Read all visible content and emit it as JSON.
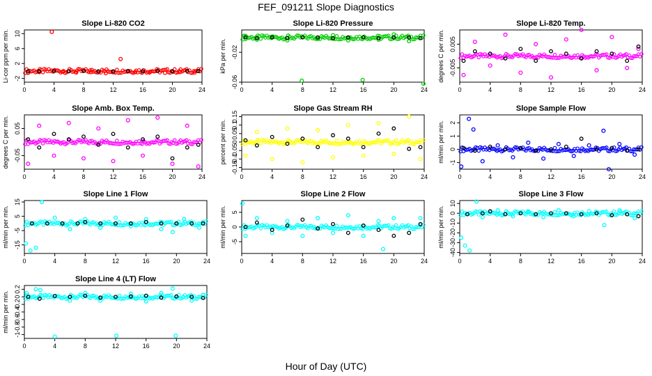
{
  "title": "FEF_091211  Slope Diagnostics",
  "xlabel": "Hour of Day (UTC)",
  "colors": {
    "black_points": "#000000",
    "red": "#ff0000",
    "green": "#00cc00",
    "magenta": "#ff00ff",
    "yellow": "#ffff00",
    "blue": "#0000ff",
    "cyan": "#00ffff"
  },
  "chart_data": [
    {
      "type": "scatter",
      "title": "Slope Li-820 CO2",
      "ylabel": "Li-cor ppm per min.",
      "xlabel": "",
      "xlim": [
        0,
        24
      ],
      "xticks": [
        0,
        4,
        8,
        12,
        16,
        20,
        24
      ],
      "ylim": [
        -3,
        11
      ],
      "yticks": [
        -2,
        2,
        6,
        10
      ],
      "color_key": "red",
      "series": [
        {
          "values_x": [
            0.5,
            2,
            3.7,
            5.2,
            7,
            9,
            11,
            13,
            15,
            17,
            19,
            21,
            23
          ],
          "values_y": [
            -0.5,
            -0.3,
            10.5,
            -0.2,
            -0.4,
            -0.3,
            -0.6,
            3.2,
            -0.3,
            -0.2,
            -0.5,
            -0.3,
            -0.4
          ]
        }
      ],
      "points_black": {
        "x": [
          0.5,
          2,
          4,
          6,
          8,
          10,
          12,
          14,
          16,
          18,
          20,
          22,
          23.5
        ],
        "y": [
          -0.1,
          -0.1,
          0,
          -0.1,
          0,
          -0.1,
          -0.1,
          0,
          -0.1,
          0,
          -0.1,
          0,
          0
        ]
      }
    },
    {
      "type": "scatter",
      "title": "Slope Li-820 Pressure",
      "ylabel": "kPa per min.",
      "xlabel": "",
      "xlim": [
        0,
        24
      ],
      "xticks": [
        0,
        4,
        8,
        12,
        16,
        20,
        24
      ],
      "ylim": [
        -0.06,
        0.01
      ],
      "yticks": [
        -0.06,
        -0.02
      ],
      "color_key": "green",
      "series": [
        {
          "values_x": [
            0.5,
            2,
            4,
            6,
            7.9,
            10,
            12,
            14,
            15.9,
            18,
            20,
            22,
            23.9
          ],
          "values_y": [
            0.002,
            -0.003,
            0.001,
            -0.004,
            -0.058,
            -0.002,
            0.003,
            -0.004,
            -0.057,
            -0.003,
            0.004,
            -0.005,
            -0.062
          ]
        }
      ],
      "points_black": {
        "x": [
          0.5,
          2,
          4,
          6,
          8,
          10,
          12,
          14,
          16,
          18,
          20,
          22,
          23.5
        ],
        "y": [
          0,
          -0.001,
          0,
          -0.001,
          0,
          0,
          -0.001,
          0,
          0,
          -0.001,
          0,
          0,
          -0.001
        ]
      }
    },
    {
      "type": "scatter",
      "title": "Slope Li-820 Temp.",
      "ylabel": "degrees C per min.",
      "xlabel": "",
      "xlim": [
        0,
        24
      ],
      "xticks": [
        0,
        4,
        8,
        12,
        16,
        20,
        24
      ],
      "ylim": [
        -0.011,
        0.011
      ],
      "yticks": [
        -0.005,
        0.005
      ],
      "color_key": "magenta",
      "series": [
        {
          "values_x": [
            0.5,
            2,
            4,
            6,
            8,
            10,
            12,
            14,
            16,
            18,
            20,
            22,
            23.5
          ],
          "values_y": [
            -0.008,
            0.006,
            -0.004,
            0.009,
            -0.007,
            0.005,
            -0.009,
            0.007,
            0.011,
            -0.006,
            0.008,
            -0.005,
            0.003
          ]
        }
      ],
      "points_black": {
        "x": [
          0.5,
          2,
          4,
          6,
          8,
          10,
          12,
          14,
          16,
          18,
          20,
          22,
          23.5
        ],
        "y": [
          -0.002,
          0.002,
          0.001,
          -0.001,
          0.003,
          -0.002,
          0.002,
          0.001,
          -0.001,
          0.002,
          0.001,
          -0.002,
          0.004
        ]
      }
    },
    {
      "type": "scatter",
      "title": "Slope Amb. Box Temp.",
      "ylabel": "degrees C per min.",
      "xlabel": "",
      "xlim": [
        0,
        24
      ],
      "xticks": [
        0,
        4,
        8,
        12,
        16,
        20,
        24
      ],
      "ylim": [
        -0.1,
        0.1
      ],
      "yticks": [
        -0.05,
        0.05
      ],
      "color_key": "magenta",
      "series": [
        {
          "values_x": [
            0.5,
            2,
            4,
            6,
            8,
            10,
            12,
            14,
            16,
            18,
            20,
            22,
            23.5
          ],
          "values_y": [
            -0.08,
            0.06,
            -0.05,
            0.07,
            -0.06,
            0.05,
            -0.07,
            0.08,
            -0.05,
            0.09,
            -0.08,
            0.06,
            -0.09
          ]
        }
      ],
      "points_black": {
        "x": [
          0.5,
          2,
          4,
          6,
          8,
          10,
          12,
          14,
          16,
          18,
          20,
          22,
          23.5
        ],
        "y": [
          0.01,
          -0.02,
          0.03,
          0.01,
          0.02,
          -0.01,
          0.03,
          -0.02,
          0.01,
          0.02,
          -0.06,
          -0.02,
          -0.01
        ]
      }
    },
    {
      "type": "scatter",
      "title": "Slope Gas Stream RH",
      "ylabel": "percent per min.",
      "xlabel": "",
      "xlim": [
        0,
        24
      ],
      "xticks": [
        0,
        4,
        8,
        12,
        16,
        20,
        24
      ],
      "ylim": [
        -0.16,
        0.16
      ],
      "yticks": [
        -0.15,
        -0.1,
        -0.05,
        0.0,
        0.05,
        0.1,
        0.15
      ],
      "color_key": "yellow",
      "series": [
        {
          "values_x": [
            0.5,
            2,
            4,
            6,
            8,
            10,
            12,
            14,
            16,
            18,
            20,
            22,
            23.5
          ],
          "values_y": [
            -0.08,
            0.06,
            -0.1,
            0.08,
            -0.12,
            0.07,
            -0.09,
            0.1,
            -0.08,
            0.11,
            -0.07,
            0.15,
            -0.1
          ]
        }
      ],
      "points_black": {
        "x": [
          0.5,
          2,
          4,
          6,
          8,
          10,
          12,
          14,
          16,
          18,
          20,
          22,
          23.5
        ],
        "y": [
          0.01,
          -0.02,
          0.03,
          -0.01,
          0.02,
          -0.03,
          0.04,
          0.02,
          -0.03,
          0.05,
          0.08,
          -0.04,
          -0.03
        ]
      }
    },
    {
      "type": "scatter",
      "title": "Slope Sample Flow",
      "ylabel": "ml/min per min.",
      "xlabel": "",
      "xlim": [
        0,
        24
      ],
      "xticks": [
        0,
        4,
        8,
        12,
        16,
        20,
        24
      ],
      "ylim": [
        -1.5,
        2.6
      ],
      "yticks": [
        -1,
        0,
        1,
        2
      ],
      "color_key": "blue",
      "series": [
        {
          "values_x": [
            0.2,
            1.2,
            1.8,
            3,
            5,
            7,
            9,
            11,
            13,
            15,
            17,
            18.9,
            19.6,
            21,
            23
          ],
          "values_y": [
            -1.3,
            2.3,
            1.5,
            -0.9,
            0.3,
            -0.6,
            0.5,
            -0.7,
            0.4,
            -0.5,
            0.3,
            1.4,
            -1.5,
            0.4,
            -0.4
          ]
        }
      ],
      "points_black": {
        "x": [
          0.5,
          2,
          4,
          6,
          8,
          10,
          12,
          14,
          16,
          18,
          20,
          22,
          23.5
        ],
        "y": [
          0.1,
          -0.1,
          0.2,
          0,
          0.1,
          -0.1,
          0,
          0.2,
          0.8,
          0,
          0.1,
          -0.1,
          0
        ]
      }
    },
    {
      "type": "scatter",
      "title": "Slope Line 1 Flow",
      "ylabel": "ml/min per min.",
      "xlabel": "",
      "xlim": [
        0,
        24
      ],
      "xticks": [
        0,
        4,
        8,
        12,
        16,
        20,
        24
      ],
      "ylim": [
        -21,
        16
      ],
      "yticks": [
        -15,
        -5,
        5,
        15
      ],
      "color_key": "cyan",
      "series": [
        {
          "values_x": [
            0.2,
            0.8,
            1.5,
            2.3,
            4,
            6,
            8,
            10,
            12,
            14,
            16,
            18,
            19.5,
            21,
            23
          ],
          "values_y": [
            -14,
            -19,
            -17,
            15,
            4,
            -4,
            3,
            -3,
            4,
            -2,
            3,
            -4,
            -6,
            3,
            -3
          ]
        }
      ],
      "points_black": {
        "x": [
          1,
          3,
          5,
          7,
          8,
          10,
          12,
          14,
          16,
          18,
          20,
          22,
          23.5
        ],
        "y": [
          0,
          0,
          0,
          0,
          1,
          0,
          0,
          0,
          1,
          0,
          0,
          0,
          0
        ]
      }
    },
    {
      "type": "scatter",
      "title": "Slope Line 2 Flow",
      "ylabel": "ml/min per min.",
      "xlabel": "",
      "xlim": [
        0,
        24
      ],
      "xticks": [
        0,
        4,
        8,
        12,
        16,
        20,
        24
      ],
      "ylim": [
        -9,
        9
      ],
      "yticks": [
        -5,
        0,
        5
      ],
      "color_key": "cyan",
      "series": [
        {
          "values_x": [
            0.1,
            0.5,
            2,
            4,
            6,
            8,
            10,
            12,
            14,
            16,
            18,
            18.6,
            20,
            22,
            23.5
          ],
          "values_y": [
            8,
            -3,
            3,
            -2,
            2,
            -3,
            3,
            -2,
            4,
            -3,
            2,
            -7.5,
            3,
            -2,
            3
          ]
        }
      ],
      "points_black": {
        "x": [
          0.5,
          2,
          4,
          6,
          8,
          10,
          12,
          14,
          16,
          18,
          20,
          22,
          23.5
        ],
        "y": [
          0,
          1.5,
          -1,
          0.5,
          2.5,
          -0.5,
          1,
          -2,
          0.5,
          -1,
          -3,
          -2,
          1
        ]
      }
    },
    {
      "type": "scatter",
      "title": "Slope Line 3 Flow",
      "ylabel": "ml/min per min.",
      "xlabel": "",
      "xlim": [
        0,
        24
      ],
      "xticks": [
        0,
        4,
        8,
        12,
        16,
        20,
        24
      ],
      "ylim": [
        -41,
        13
      ],
      "yticks": [
        -40,
        -30,
        -20,
        -10,
        0,
        10
      ],
      "color_key": "cyan",
      "series": [
        {
          "values_x": [
            0.2,
            0.7,
            1.3,
            2.2,
            3,
            5,
            7,
            9,
            11,
            13,
            15,
            17,
            19,
            21,
            23
          ],
          "values_y": [
            -25,
            -33,
            -38,
            12,
            -4,
            3,
            -3,
            2,
            -4,
            3,
            -3,
            2,
            -12,
            3,
            -5
          ]
        }
      ],
      "points_black": {
        "x": [
          1,
          3,
          4,
          6,
          8,
          10,
          12,
          14,
          16,
          18,
          20,
          22,
          23.5
        ],
        "y": [
          -1,
          0,
          2,
          -1,
          0,
          -1,
          0,
          0,
          -1,
          0,
          -2,
          -1,
          -3
        ]
      }
    },
    {
      "type": "scatter",
      "title": "Slope Line 4 (LT) Flow",
      "ylabel": "ml/min per min.",
      "xlabel": "",
      "xlim": [
        0,
        24
      ],
      "xticks": [
        0,
        4,
        8,
        12,
        16,
        20,
        24
      ],
      "ylim": [
        -1.1,
        0.3
      ],
      "yticks": [
        -1.0,
        -0.8,
        -0.6,
        -0.4,
        -0.2,
        0.0,
        0.2
      ],
      "color_key": "cyan",
      "series": [
        {
          "values_x": [
            0.3,
            1.5,
            2.1,
            4,
            6,
            8,
            10,
            12.1,
            14,
            16,
            18,
            19.5,
            19.9,
            22,
            23.5
          ],
          "values_y": [
            0.1,
            0.2,
            0.18,
            -1.05,
            -0.1,
            0.1,
            -0.1,
            -1.03,
            0.08,
            -0.12,
            0.1,
            0.22,
            -1.03,
            -0.1,
            0.05
          ]
        }
      ],
      "points_black": {
        "x": [
          0.5,
          2,
          4,
          6,
          8,
          10,
          12,
          14,
          16,
          18,
          20,
          22,
          23.5
        ],
        "y": [
          0,
          -0.05,
          0.02,
          0,
          0.03,
          -0.02,
          0,
          0.01,
          0.03,
          -0.02,
          0.01,
          0,
          -0.03
        ]
      }
    }
  ]
}
